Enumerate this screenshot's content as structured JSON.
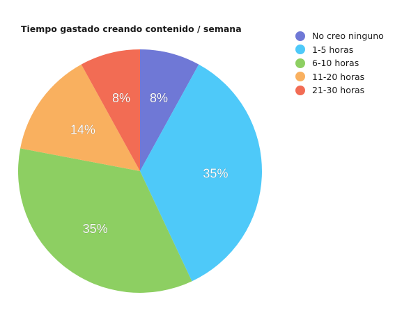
{
  "chart_data": {
    "type": "pie",
    "title": "Tiempo gastado creando contenido / semana",
    "categories": [
      "No creo ninguno",
      "1-5 horas",
      "6-10 horas",
      "11-20 horas",
      "21-30 horas"
    ],
    "values": [
      8,
      35,
      35,
      14,
      8
    ],
    "data_labels": [
      "8%",
      "35%",
      "35%",
      "14%",
      "8%"
    ],
    "colors": [
      "#6f78d6",
      "#4ec9f9",
      "#8dcf62",
      "#f9b05f",
      "#f26c54"
    ],
    "legend_position": "top-right"
  }
}
